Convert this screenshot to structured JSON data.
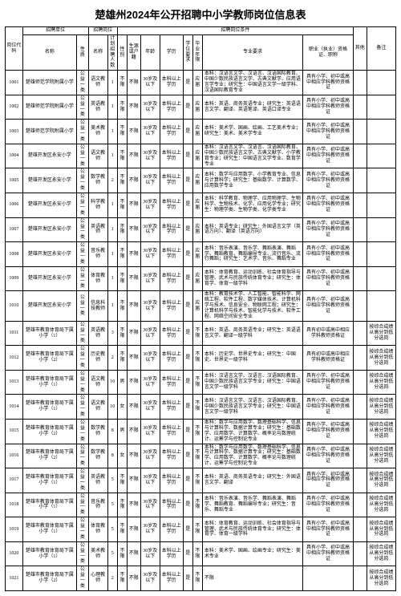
{
  "title": "楚雄州2024年公开招聘中小学教师岗位信息表",
  "header": {
    "code": "岗位代码",
    "unit_group": "招聘单位",
    "pos_group": "招聘岗位",
    "cond_group": "招聘岗位条件",
    "other": "其他",
    "note": "备注",
    "unit_name": "名称",
    "unit_nature": "性质",
    "pos_name": "名称",
    "pos_plan": "计划招聘人数",
    "gender": "性别",
    "src": "生源或户籍",
    "age": "年龄",
    "edu": "学历",
    "deg": "学位要求",
    "grad": "毕业年限",
    "maj": "专业要求",
    "cert": "职业（执业）资格证、职称"
  },
  "rows": [
    {
      "code": "1001",
      "unit": "楚雄师范学院附属小学",
      "nature": "公益一类",
      "pos": "语文教师",
      "plan": "1",
      "gender": "不限",
      "src": "不限",
      "age": "30岁及以下",
      "edu": "本科以上学历",
      "deg": "是",
      "grad": "应届",
      "maj": "本科：汉语言文学、汉语言、汉语国际教育、中国少数民族语言文学、古典文献学、应用语言学专业；研究生：中国语言文学一级学科、汉语国际教育专业",
      "cert": "具有小学、初中或高中相应学科教师资格证",
      "other": "",
      "note": ""
    },
    {
      "code": "1002",
      "unit": "楚雄师范学院附属小学",
      "nature": "公益一类",
      "pos": "英语教师",
      "plan": "1",
      "gender": "不限",
      "src": "不限",
      "age": "30岁及以下",
      "edu": "本科以上学历",
      "deg": "是",
      "grad": "应届",
      "maj": "本科：英语、商务英语专业；研究生：英语语言文学、翻译、英语笔译、英语口译专业",
      "cert": "具有小学、初中或高中相应学科教师资格证",
      "other": "",
      "note": ""
    },
    {
      "code": "1003",
      "unit": "楚雄师范学院附属小学",
      "nature": "公益一类",
      "pos": "美术教师",
      "plan": "1",
      "gender": "不限",
      "src": "不限",
      "age": "30岁及以下",
      "edu": "本科以上学历",
      "deg": "是",
      "grad": "应届",
      "maj": "本科：美术学、国画、绘画、工艺美术专业；研究生：美术、美术学专业",
      "cert": "具有小学、初中或高中相应学科教师资格证",
      "other": "",
      "note": ""
    },
    {
      "code": "1004",
      "unit": "楚雄开发区永安小学",
      "nature": "公益一类",
      "pos": "语文教师",
      "plan": "1",
      "gender": "不限",
      "src": "不限",
      "age": "30岁及以下",
      "edu": "本科以上学历",
      "deg": "是",
      "grad": "应届",
      "maj": "本科：汉语言文学、汉语言、汉语国际教育、中国少数民族语言文学、古典文献学、小学教育专业；研究生：中国语言文学专业、数育学专业",
      "cert": "具有小学、初中或高中相应学科教师资格证",
      "other": "",
      "note": ""
    },
    {
      "code": "1005",
      "unit": "楚雄开发区永安小学",
      "nature": "公益一类",
      "pos": "数学教师",
      "plan": "2",
      "gender": "不限",
      "src": "不限",
      "age": "30岁及以下",
      "edu": "本科以上学历",
      "deg": "是",
      "grad": "应届",
      "maj": "本科：数学与应用数学、小学教育专业、信息与计算科学；研究生：基础数学、计算数学、应用数学专业",
      "cert": "具有小学、初中或高中相应学科教师资格证",
      "other": "",
      "note": ""
    },
    {
      "code": "1006",
      "unit": "楚雄开发区永安小学",
      "nature": "公益一类",
      "pos": "科学教师",
      "plan": "1",
      "gender": "不限",
      "src": "不限",
      "age": "30岁及以下",
      "edu": "本科以上学历",
      "deg": "是",
      "grad": "应届",
      "maj": "本科：科学教育、物理学、应用物理学、生物科学、生物技术、化学、应用化学专业；研究生：物理学类、生物学类、化学类专业",
      "cert": "具有小学、初中或高中相应学科教师资格证",
      "other": "",
      "note": ""
    },
    {
      "code": "1007",
      "unit": "楚雄开发区永安小学",
      "nature": "公益一类",
      "pos": "英语教师",
      "plan": "1",
      "gender": "不限",
      "src": "不限",
      "age": "30岁及以下",
      "edu": "本科以上学历",
      "deg": "是",
      "grad": "应届",
      "maj": "本科：英语专业；研究生：外国语言文学（英语方向）、翻译（英语方向）",
      "cert": "具有小学、初中或高中相应学科教师资格证",
      "other": "",
      "note": ""
    },
    {
      "code": "1008",
      "unit": "楚雄开发区永安小学",
      "nature": "公益一类",
      "pos": "音乐教师",
      "plan": "1",
      "gender": "不限",
      "src": "不限",
      "age": "30岁及以下",
      "edu": "本科以上学历",
      "deg": "是",
      "grad": "应届",
      "maj": "本科：音乐表演、音乐学、舞蹈表演、舞蹈学、舞蹈教育、舞蹈编导专业、流行音乐、流行舞蹈；研究生：艺术学、音乐、舞蹈专业",
      "cert": "具有小学、初中或高中相应学科教师资格证",
      "other": "",
      "note": ""
    },
    {
      "code": "1009",
      "unit": "楚雄开发区永安小学",
      "nature": "公益一类",
      "pos": "体育教师",
      "plan": "1",
      "gender": "不限",
      "src": "不限",
      "age": "30岁及以下",
      "edu": "本科以上学历",
      "deg": "是",
      "grad": "应届",
      "maj": "本科：体育教育、运动训练、社会体育指导与管理、武术与民族传统体育专业；研究生：体育学、体育一级学科",
      "cert": "具有小学、初中或高中相应学科教师资格证",
      "other": "",
      "note": ""
    },
    {
      "code": "1010",
      "unit": "楚雄开发区永安小学",
      "nature": "公益一类",
      "pos": "信息科技教师",
      "plan": "1",
      "gender": "不限",
      "src": "不限",
      "age": "30岁及以下",
      "edu": "本科以上学历",
      "deg": "是",
      "grad": "应届",
      "maj": "本科：教育技术学、人工智能、智能科学、网络工程、软件工程、数字媒体技术、计算机科学与技术、信息安全、物联网工程；研究生：计算机科学与技术、智能化学与技术、软件工程、网络空间安全专业",
      "cert": "具有小学、初中或高中相应学科教师资格证",
      "other": "",
      "note": ""
    },
    {
      "code": "1011",
      "unit": "楚雄市教育体育局下属小学（1）",
      "nature": "公益一类",
      "pos": "英语教师",
      "plan": "3",
      "gender": "不限",
      "src": "不限",
      "age": "30岁及以下",
      "edu": "本科以上学历",
      "deg": "是",
      "grad": "不限",
      "maj": "本科：英语、商务英语专业；研究生：英语语言文学、翻译一级学科",
      "cert": "具有初中或高中相应学科教师资格证",
      "other": "",
      "note": "按综合成绩从高分到低分选岗"
    },
    {
      "code": "1012",
      "unit": "楚雄市教育体育局下属小学（2）",
      "nature": "公益一类",
      "pos": "历史教师",
      "plan": "2",
      "gender": "不限",
      "src": "不限",
      "age": "30岁及以下",
      "edu": "本科以上学历",
      "deg": "是",
      "grad": "不限",
      "maj": "本科：历史学、世界史专业；研究生：中国史、世界史一级学科",
      "cert": "具有初中或高中相应学科教师资格证",
      "other": "",
      "note": "按综合成绩从高分到低分选岗"
    },
    {
      "code": "1013",
      "unit": "楚雄市教育体育局下属小学（1）",
      "nature": "公益一类",
      "pos": "语文教师",
      "plan": "10",
      "gender": "男",
      "src": "不限",
      "age": "30岁及以下",
      "edu": "本科以上学历",
      "deg": "是",
      "grad": "不限",
      "maj": "本科：汉语言文学、汉语言、汉语国际教育、中国少数民族语言文学专业；研究生：中国语言文学一级学科",
      "cert": "具有小学、初中或高中相应学科教师资格证",
      "other": "",
      "note": "按综合成绩从高分到低分选岗"
    },
    {
      "code": "1014",
      "unit": "楚雄市教育体育局下属小学（1）",
      "nature": "公益一类",
      "pos": "语文教师",
      "plan": "10",
      "gender": "女",
      "src": "不限",
      "age": "30岁及以下",
      "edu": "本科以上学历",
      "deg": "是",
      "grad": "不限",
      "maj": "本科：汉语言文学、汉语言、汉语国际教育、中国少数民族语言文学专业；研究生：中国语言文学一级学科",
      "cert": "具有小学、初中或高中相应学科教师资格证",
      "other": "",
      "note": "按综合成绩从高分到低分选岗"
    },
    {
      "code": "1015",
      "unit": "楚雄市教育体育局下属小学（2）",
      "nature": "公益一类",
      "pos": "数学教师",
      "plan": "8",
      "gender": "男",
      "src": "不限",
      "age": "30岁及以下",
      "edu": "本科以上学历",
      "deg": "是",
      "grad": "不限",
      "maj": "本科：数学与应用数学、数理基础科学、信息与计算科学、数据计算专业；研究生：基础数学、应用数学、计算数学、概率论与数理统计、运筹学与控制论专业",
      "cert": "具有小学、初中或高中相应学科教师资格证",
      "other": "",
      "note": "按综合成绩从高分到低分选岗"
    },
    {
      "code": "1016",
      "unit": "楚雄市教育体育局下属小学（2）",
      "nature": "公益一类",
      "pos": "数学教师",
      "plan": "8",
      "gender": "女",
      "src": "不限",
      "age": "30岁及以下",
      "edu": "本科以上学历",
      "deg": "是",
      "grad": "不限",
      "maj": "本科：数学与应用数学、数理基础科学、信息与计算科学、数据计算专业；研究生：基础数学、应用数学、计算数学、概率论与数理统计、运筹学与控制论专业",
      "cert": "具有小学、初中或高中相应学科教师资格证",
      "other": "",
      "note": "按综合成绩从高分到低分选岗"
    },
    {
      "code": "1017",
      "unit": "楚雄市教育体育局下属小学（1）",
      "nature": "公益一类",
      "pos": "英语教师",
      "plan": "5",
      "gender": "不限",
      "src": "不限",
      "age": "30岁及以下",
      "edu": "本科以上学历",
      "deg": "是",
      "grad": "不限",
      "maj": "本科：英语、商务英语专业；研究生：外国语言文学、翻译",
      "cert": "具有小学、初中或高中相应学科教师资格证",
      "other": "",
      "note": "按综合成绩从高分到低分选岗"
    },
    {
      "code": "1018",
      "unit": "楚雄市教育体育局下属小学（1）",
      "nature": "公益一类",
      "pos": "音乐教师",
      "plan": "5",
      "gender": "不限",
      "src": "不限",
      "age": "30岁及以下",
      "edu": "本科以上学历",
      "deg": "是",
      "grad": "不限",
      "maj": "本科：音乐表演、音乐学、舞蹈表演、舞蹈学、舞蹈教育、舞蹈编导专业；研究生：音乐、舞蹈专业",
      "cert": "具有小学、初中或高中相应学科教师资格证",
      "other": "",
      "note": "按综合成绩从高分到低分选岗"
    },
    {
      "code": "1019",
      "unit": "楚雄市教育体育局下属小学（1）",
      "nature": "公益一类",
      "pos": "体育教师",
      "plan": "5",
      "gender": "不限",
      "src": "不限",
      "age": "30岁及以下",
      "edu": "本科以上学历",
      "deg": "是",
      "grad": "不限",
      "maj": "本科：体育教育、运动训练、社会体育指导与管理、武术与民族传统体育专业；研究生：体育学、体育一级学科",
      "cert": "具有小学、初中或高中相应学科教师资格证",
      "other": "",
      "note": "按综合成绩从高分到低分选岗"
    },
    {
      "code": "1020",
      "unit": "楚雄市教育体育局下属小学（1）",
      "nature": "公益一类",
      "pos": "美术教师",
      "plan": "5",
      "gender": "不限",
      "src": "不限",
      "age": "30岁及以下",
      "edu": "本科以上学历",
      "deg": "是",
      "grad": "不限",
      "maj": "本科：美术学、国画、绘画专业；研究生：美术专业",
      "cert": "具有小学、初中或高中相应学科教师资格证",
      "other": "",
      "note": "按综合成绩从高分到低分选岗"
    },
    {
      "code": "1021",
      "unit": "楚雄市教育体育局下属小学（2）",
      "nature": "公益一类",
      "pos": "心理教师",
      "plan": "2",
      "gender": "不限",
      "src": "不限",
      "age": "30岁及以下",
      "edu": "本科以上学历",
      "deg": "是",
      "grad": "不限",
      "maj": "不限",
      "cert": "",
      "other": "",
      "note": "按综合成绩从高分到低分选岗"
    }
  ]
}
